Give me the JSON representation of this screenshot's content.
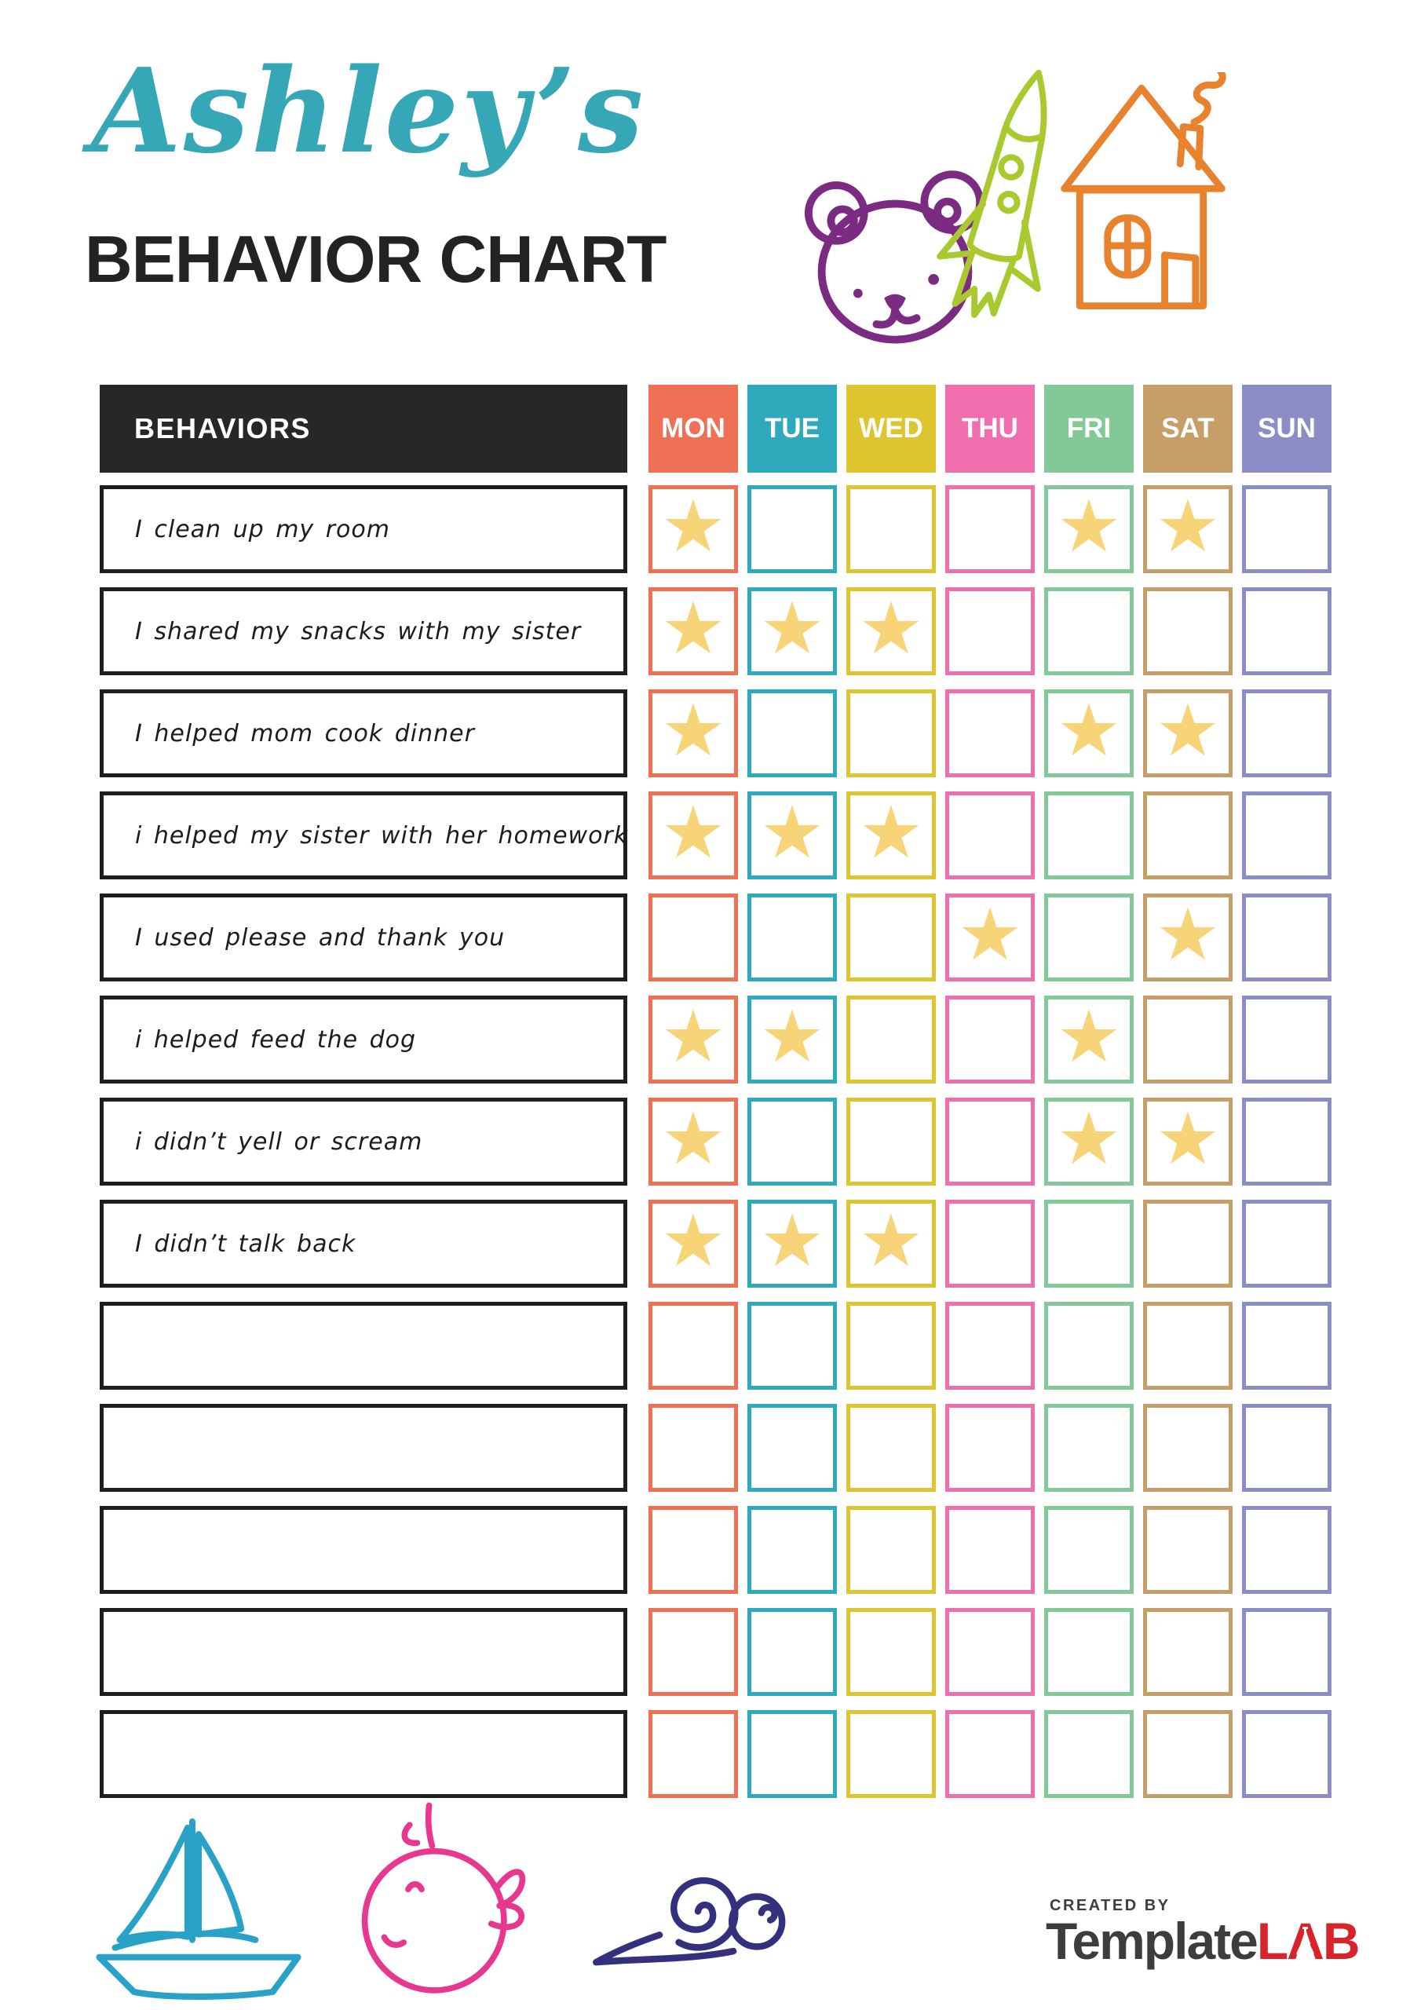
{
  "header": {
    "child_name": "Ashley’s",
    "title": "BEHAVIOR CHART",
    "name_color": "#35a7b6",
    "title_color": "#232323"
  },
  "doodles": {
    "bear_color": "#7c2b82",
    "rocket_color": "#a9c92f",
    "house_color": "#e8822d",
    "boat_color": "#2aa2c8",
    "whale_color": "#e8378e",
    "snail_color": "#35307d"
  },
  "table": {
    "behaviors_header": "BEHAVIORS",
    "header_bg": "#272727",
    "star_color": "#f8d478",
    "star_glyph": "★",
    "days": [
      {
        "label": "MON",
        "color": "#ee7055"
      },
      {
        "label": "TUE",
        "color": "#2fa9bc"
      },
      {
        "label": "WED",
        "color": "#ddc52f"
      },
      {
        "label": "THU",
        "color": "#f06eae"
      },
      {
        "label": "FRI",
        "color": "#83c998"
      },
      {
        "label": "SAT",
        "color": "#c59e68"
      },
      {
        "label": "SUN",
        "color": "#8c8dc7"
      }
    ],
    "rows": [
      {
        "behavior": "I clean up my room",
        "stars": [
          1,
          0,
          0,
          0,
          1,
          1,
          0
        ]
      },
      {
        "behavior": "I shared my snacks with my sister",
        "stars": [
          1,
          1,
          1,
          0,
          0,
          0,
          0
        ]
      },
      {
        "behavior": "I helped mom cook dinner",
        "stars": [
          1,
          0,
          0,
          0,
          1,
          1,
          0
        ]
      },
      {
        "behavior": "i helped my sister with her homework",
        "stars": [
          1,
          1,
          1,
          0,
          0,
          0,
          0
        ]
      },
      {
        "behavior": "I used please and thank you",
        "stars": [
          0,
          0,
          0,
          1,
          0,
          1,
          0
        ]
      },
      {
        "behavior": "i helped feed the dog",
        "stars": [
          1,
          1,
          0,
          0,
          1,
          0,
          0
        ]
      },
      {
        "behavior": "i didn’t yell or scream",
        "stars": [
          1,
          0,
          0,
          0,
          1,
          1,
          0
        ]
      },
      {
        "behavior": "I didn’t talk back",
        "stars": [
          1,
          1,
          1,
          0,
          0,
          0,
          0
        ]
      },
      {
        "behavior": "",
        "stars": [
          0,
          0,
          0,
          0,
          0,
          0,
          0
        ]
      },
      {
        "behavior": "",
        "stars": [
          0,
          0,
          0,
          0,
          0,
          0,
          0
        ]
      },
      {
        "behavior": "",
        "stars": [
          0,
          0,
          0,
          0,
          0,
          0,
          0
        ]
      },
      {
        "behavior": "",
        "stars": [
          0,
          0,
          0,
          0,
          0,
          0,
          0
        ]
      },
      {
        "behavior": "",
        "stars": [
          0,
          0,
          0,
          0,
          0,
          0,
          0
        ]
      }
    ]
  },
  "footer": {
    "created_by": "CREATED BY",
    "brand_name": "Template",
    "brand_suffix": "LAB",
    "brand_color": "#3d3d3d",
    "brand_accent_color": "#d8232a"
  }
}
